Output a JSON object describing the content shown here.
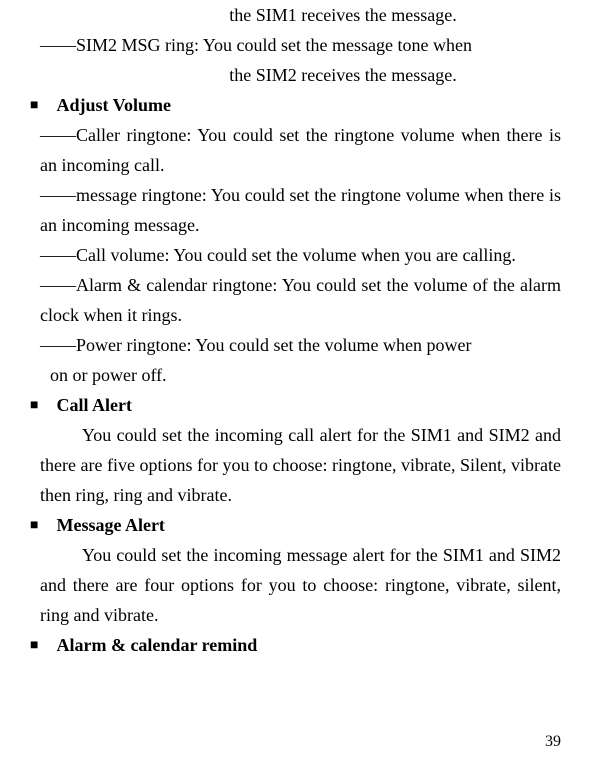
{
  "page": {
    "number": "39"
  },
  "top": {
    "line1": "the SIM1 receives the message.",
    "sim2_line": "――SIM2 MSG ring: You could set the message tone when",
    "sim2_cont": "the SIM2 receives the message."
  },
  "adjust_volume": {
    "heading": "Adjust Volume",
    "item1": "――Caller ringtone: You could set the ringtone volume when there is an incoming call.",
    "item2": "――message ringtone: You could set the ringtone volume when there is an incoming message.",
    "item3": "――Call volume: You could set the volume when you are calling.",
    "item4": "――Alarm & calendar ringtone: You could set the volume of the alarm clock when it rings.",
    "item5a": "――Power ringtone: You could set the volume when power",
    "item5b": "on or power off."
  },
  "call_alert": {
    "heading": "Call Alert",
    "body": "You could set the incoming call alert for the SIM1 and SIM2 and there are five options for you to choose: ringtone, vibrate, Silent, vibrate then ring, ring and vibrate."
  },
  "message_alert": {
    "heading": "Message Alert",
    "body": "You could set the incoming message alert for the SIM1 and SIM2 and there are four options for you to choose: ringtone, vibrate, silent, ring and vibrate."
  },
  "alarm_remind": {
    "heading": "Alarm & calendar remind"
  },
  "style": {
    "font_family": "Times New Roman",
    "font_size_body": 18,
    "font_size_pagenum": 16,
    "line_height": 30,
    "text_color": "#000000",
    "background_color": "#ffffff",
    "bullet_char": "■"
  }
}
